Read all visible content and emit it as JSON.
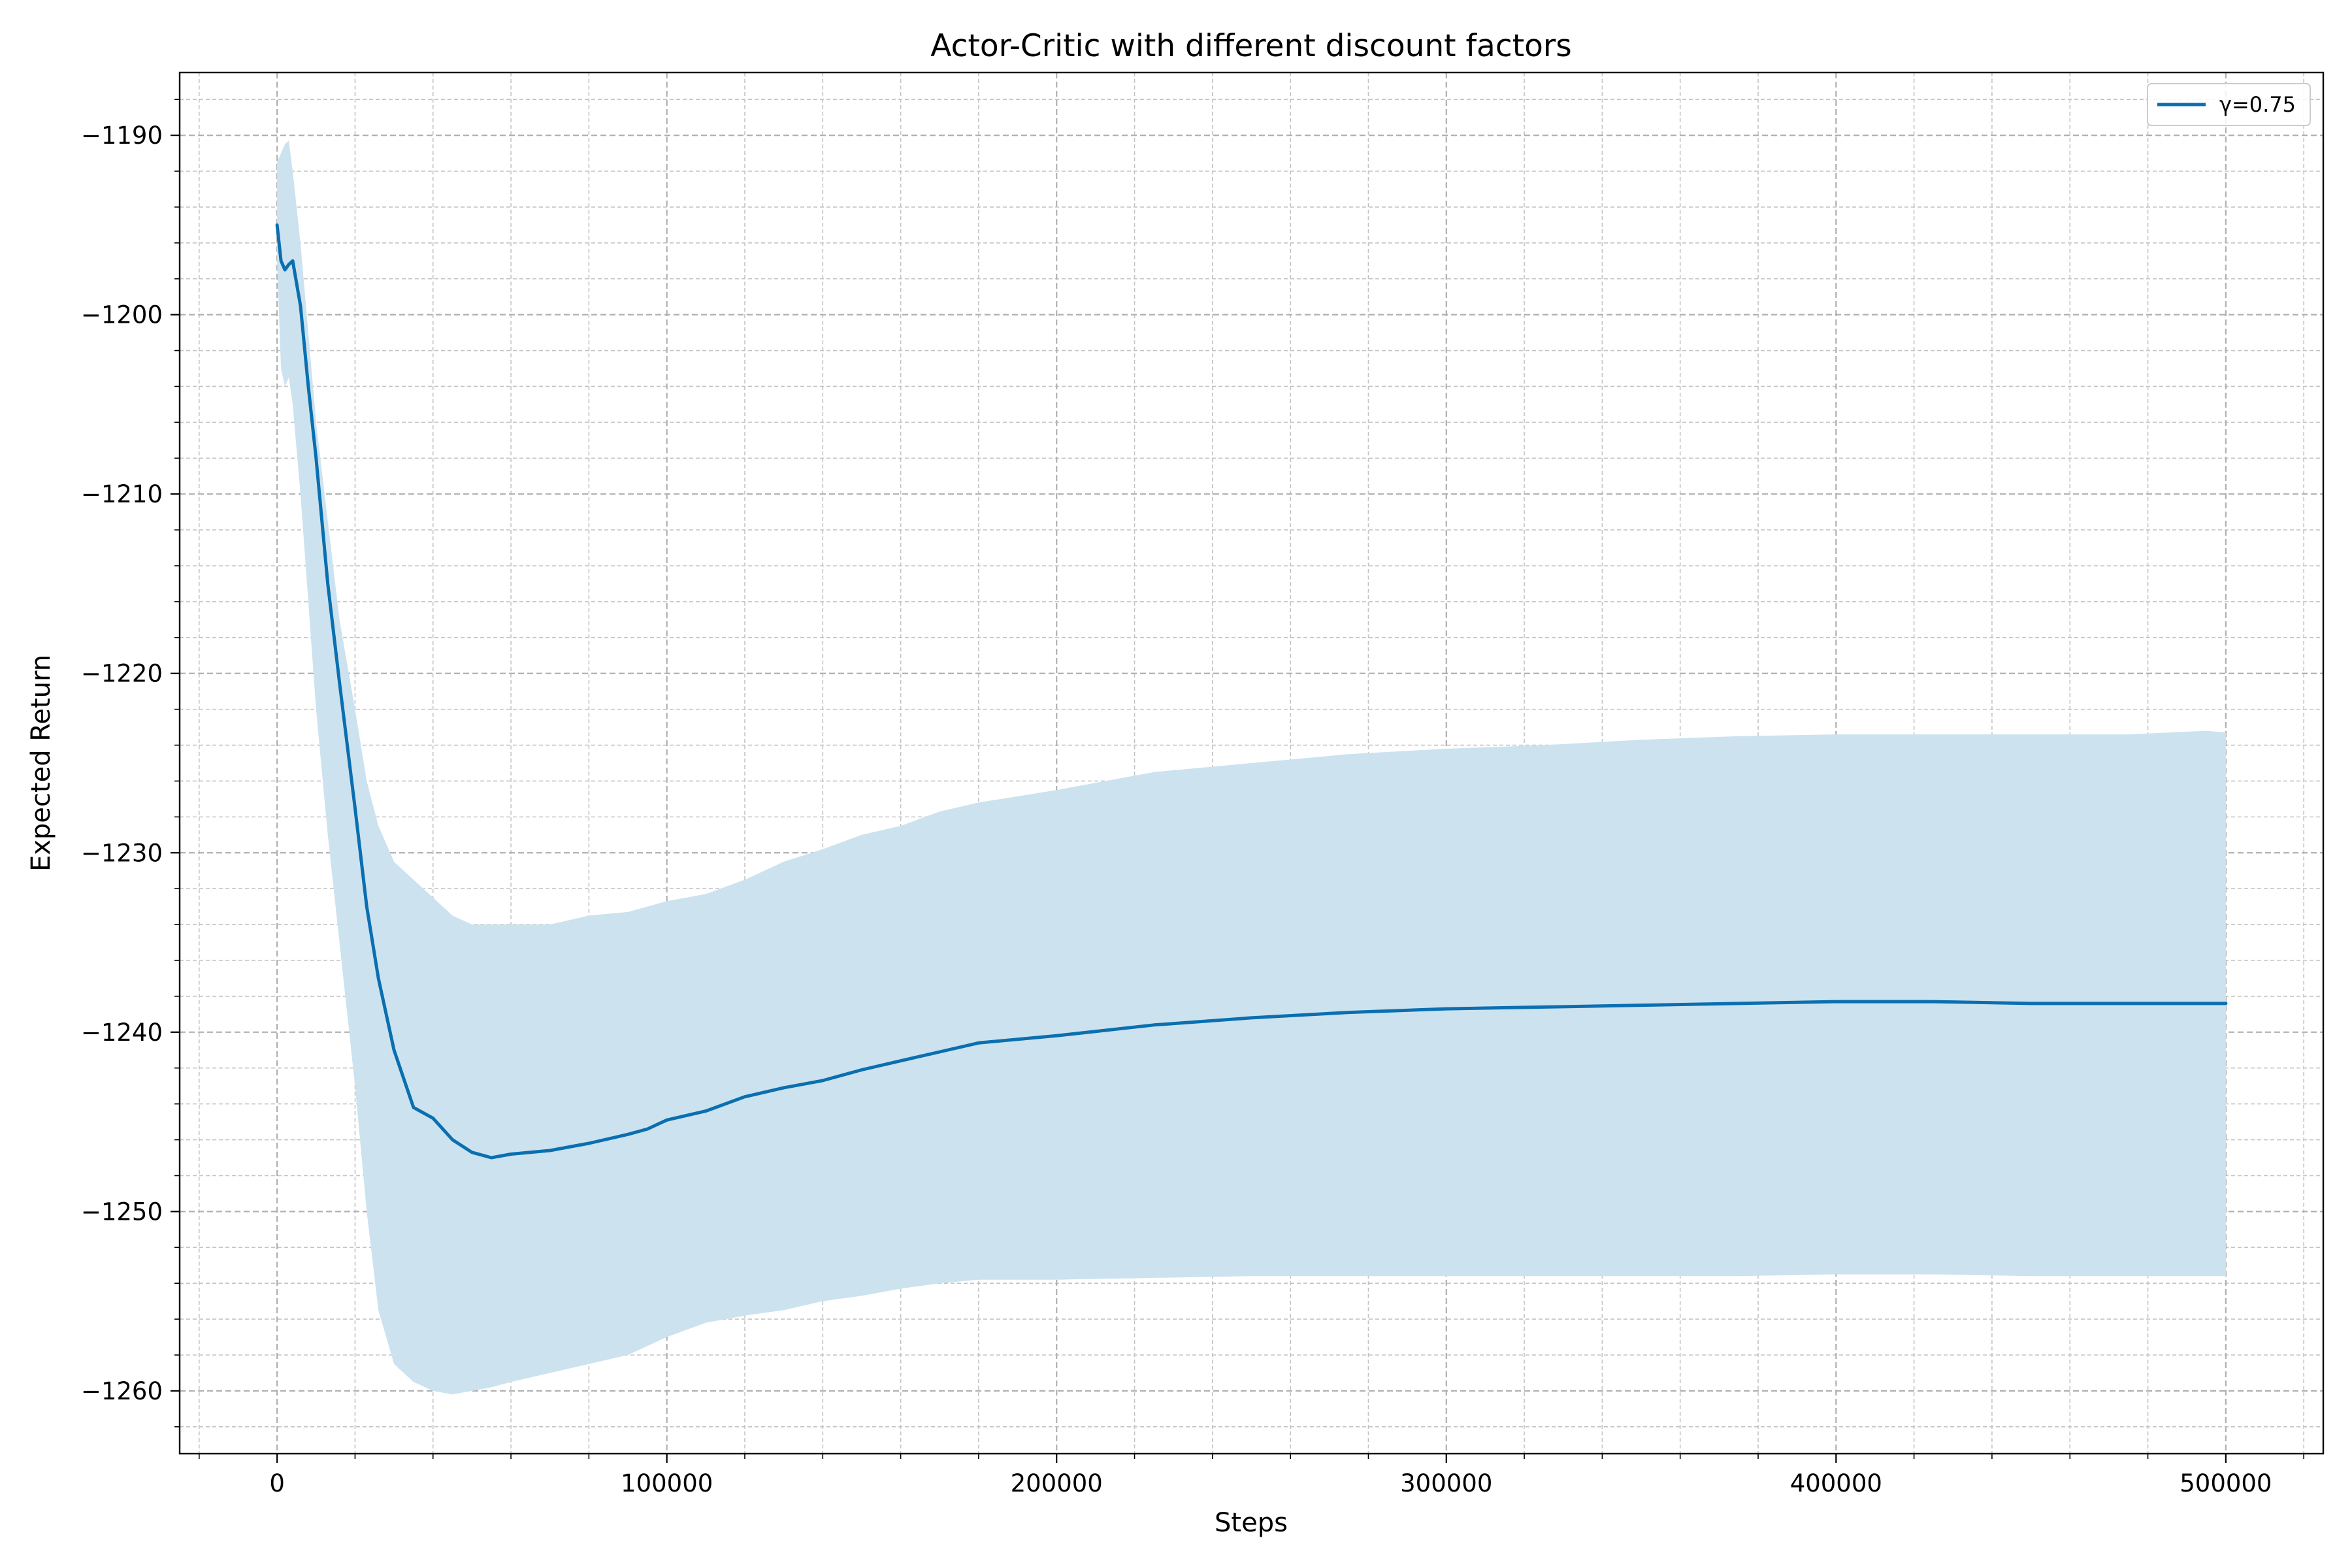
{
  "chart_data": {
    "type": "line",
    "title": "Actor-Critic with different discount factors",
    "xlabel": "Steps",
    "ylabel": "Expected Return",
    "xlim": [
      -25000,
      525000
    ],
    "ylim": [
      -1263.5,
      -1186.5
    ],
    "x_major_ticks": [
      0,
      100000,
      200000,
      300000,
      400000,
      500000
    ],
    "x_tick_labels": [
      "0",
      "100000",
      "200000",
      "300000",
      "400000",
      "500000"
    ],
    "x_minor_step": 20000,
    "y_major_ticks": [
      -1260,
      -1250,
      -1240,
      -1230,
      -1220,
      -1210,
      -1200,
      -1190
    ],
    "y_tick_labels": [
      "−1260",
      "−1250",
      "−1240",
      "−1230",
      "−1220",
      "−1210",
      "−1200",
      "−1190"
    ],
    "y_minor_step": 2,
    "grid": true,
    "legend_position": "top-right",
    "series": [
      {
        "name": "γ=0.75",
        "color": "#0a6fb0",
        "band_color": "#cce2ef",
        "x": [
          0,
          1000,
          2000,
          3000,
          4000,
          6000,
          8000,
          10000,
          13000,
          16000,
          20000,
          23000,
          26000,
          30000,
          35000,
          40000,
          45000,
          50000,
          55000,
          60000,
          70000,
          80000,
          90000,
          95000,
          100000,
          110000,
          120000,
          130000,
          140000,
          150000,
          160000,
          170000,
          180000,
          200000,
          225000,
          250000,
          275000,
          300000,
          325000,
          350000,
          375000,
          400000,
          425000,
          450000,
          475000,
          495000,
          500000
        ],
        "mean": [
          -1195,
          -1197,
          -1197.5,
          -1197.2,
          -1197,
          -1199.5,
          -1204,
          -1208,
          -1215,
          -1220.5,
          -1227.5,
          -1233,
          -1237,
          -1241,
          -1244.2,
          -1244.8,
          -1246,
          -1246.7,
          -1247,
          -1246.8,
          -1246.6,
          -1246.2,
          -1245.7,
          -1245.4,
          -1244.9,
          -1244.4,
          -1243.6,
          -1243.1,
          -1242.7,
          -1242.1,
          -1241.6,
          -1241.1,
          -1240.6,
          -1240.2,
          -1239.6,
          -1239.2,
          -1238.9,
          -1238.7,
          -1238.6,
          -1238.5,
          -1238.4,
          -1238.3,
          -1238.3,
          -1238.4,
          -1238.4,
          -1238.4,
          -1238.4
        ],
        "upper": [
          -1191.5,
          -1191,
          -1190.5,
          -1190.3,
          -1192,
          -1196,
          -1201,
          -1206,
          -1211.5,
          -1217,
          -1222,
          -1226,
          -1228.5,
          -1230.5,
          -1231.5,
          -1232.5,
          -1233.5,
          -1234,
          -1234,
          -1234,
          -1234,
          -1233.5,
          -1233.3,
          -1233,
          -1232.7,
          -1232.3,
          -1231.5,
          -1230.5,
          -1229.8,
          -1229,
          -1228.5,
          -1227.7,
          -1227.2,
          -1226.5,
          -1225.5,
          -1225,
          -1224.5,
          -1224.2,
          -1224,
          -1223.7,
          -1223.5,
          -1223.4,
          -1223.4,
          -1223.4,
          -1223.4,
          -1223.2,
          -1223.3
        ],
        "lower": [
          -1197,
          -1203,
          -1204,
          -1203.5,
          -1205,
          -1210,
          -1216,
          -1222,
          -1229,
          -1235,
          -1243,
          -1250,
          -1255.5,
          -1258.5,
          -1259.5,
          -1260,
          -1260.2,
          -1260,
          -1259.8,
          -1259.5,
          -1259,
          -1258.5,
          -1258,
          -1257.5,
          -1257,
          -1256.2,
          -1255.8,
          -1255.5,
          -1255,
          -1254.7,
          -1254.3,
          -1254,
          -1253.8,
          -1253.8,
          -1253.7,
          -1253.6,
          -1253.6,
          -1253.6,
          -1253.6,
          -1253.6,
          -1253.6,
          -1253.5,
          -1253.5,
          -1253.6,
          -1253.6,
          -1253.6,
          -1253.6
        ]
      }
    ]
  }
}
